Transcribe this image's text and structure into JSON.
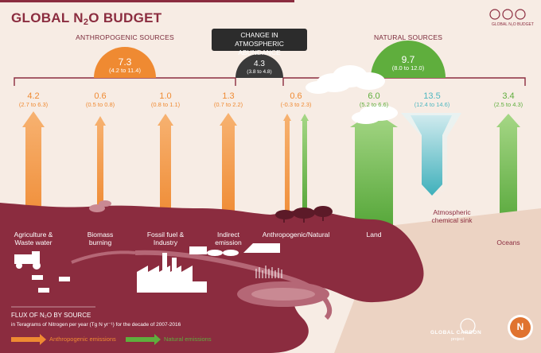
{
  "title": {
    "main": "GLOBAL N",
    "subscript": "2",
    "suffix": "O BUDGET"
  },
  "headers": {
    "anthropogenic": "ANTHROPOGENIC SOURCES",
    "natural": "NATURAL SOURCES",
    "change": "CHANGE IN ATMOSPHERIC ABUNDANCE"
  },
  "totals": {
    "anthropogenic": {
      "value": "7.3",
      "range": "(4.2 to 11.4)"
    },
    "change": {
      "value": "4.3",
      "range": "(3.8 to 4.8)"
    },
    "natural": {
      "value": "9.7",
      "range": "(8.0 to 12.0)"
    }
  },
  "fluxes": [
    {
      "value": "4.2",
      "range": "(2.7 to 6.3)",
      "label": "Agriculture &\nWaste water",
      "kind": "anthropogenic"
    },
    {
      "value": "0.6",
      "range": "(0.5 to 0.8)",
      "label": "Biomass\nburning",
      "kind": "anthropogenic"
    },
    {
      "value": "1.0",
      "range": "(0.8 to 1.1)",
      "label": "Fossil fuel &\nIndustry",
      "kind": "anthropogenic"
    },
    {
      "value": "1.3",
      "range": "(0.7 to 2.2)",
      "label": "Indirect\nemission",
      "kind": "anthropogenic"
    },
    {
      "value": "0.6",
      "range": "(-0.3 to 2.3)",
      "label": "Anthropogenic/Natural",
      "kind": "mixed"
    },
    {
      "value": "6.0",
      "range": "(5.2 to 6.6)",
      "label": "Land",
      "kind": "natural"
    },
    {
      "value": "13.5",
      "range": "(12.4 to 14.6)",
      "label": "Atmospheric\nchemical sink",
      "kind": "sink"
    },
    {
      "value": "3.4",
      "range": "(2.5 to 4.3)",
      "label": "Oceans",
      "kind": "natural"
    }
  ],
  "legend": {
    "title": "FLUX OF N₂O BY SOURCE",
    "subtitle": "in Teragrams of Nitrogen per year (Tg N yr⁻¹) for the decade of 2007-2016",
    "anthropogenic": "Anthropogenic emissions",
    "natural": "Natural emissions"
  },
  "logos": {
    "gcp_line1": "GLOBAL CARBON",
    "gcp_line2": "project",
    "corner": "GLOBAL N₂O BUDGET",
    "n_logo": "N"
  },
  "colors": {
    "anthropogenic": "#ef8a32",
    "natural": "#5fae3d",
    "sink": "#4fb7c0",
    "land": "#8b2c3f",
    "ocean": "#ecd3c3"
  }
}
